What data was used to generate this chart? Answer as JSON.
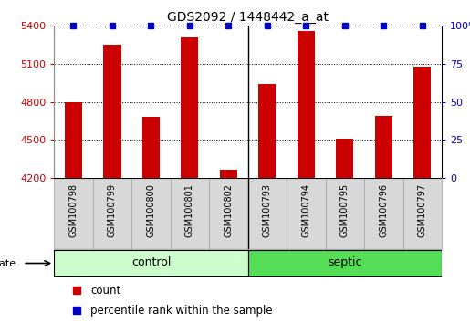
{
  "title": "GDS2092 / 1448442_a_at",
  "samples": [
    "GSM100798",
    "GSM100799",
    "GSM100800",
    "GSM100801",
    "GSM100802",
    "GSM100793",
    "GSM100794",
    "GSM100795",
    "GSM100796",
    "GSM100797"
  ],
  "counts": [
    4800,
    5250,
    4680,
    5310,
    4260,
    4940,
    5360,
    4510,
    4690,
    5080
  ],
  "percentile_ranks": [
    100,
    100,
    100,
    100,
    100,
    100,
    100,
    100,
    100,
    100
  ],
  "groups": [
    "control",
    "control",
    "control",
    "control",
    "control",
    "septic",
    "septic",
    "septic",
    "septic",
    "septic"
  ],
  "ylim_left": [
    4200,
    5400
  ],
  "ylim_right": [
    0,
    100
  ],
  "yticks_left": [
    4200,
    4500,
    4800,
    5100,
    5400
  ],
  "yticks_right": [
    0,
    25,
    50,
    75,
    100
  ],
  "bar_color": "#cc0000",
  "dot_color": "#0000cc",
  "control_color": "#ccffcc",
  "septic_color": "#55dd55",
  "group_label": "disease state",
  "legend_count_label": "count",
  "legend_pct_label": "percentile rank within the sample",
  "bar_width": 0.45,
  "grid_color": "#000000",
  "bg_color": "#ffffff",
  "tick_color_left": "#cc0000",
  "tick_color_right": "#0000cc",
  "sample_box_color": "#d8d8d8",
  "n_control": 5,
  "n_septic": 5,
  "sep_idx": 4
}
